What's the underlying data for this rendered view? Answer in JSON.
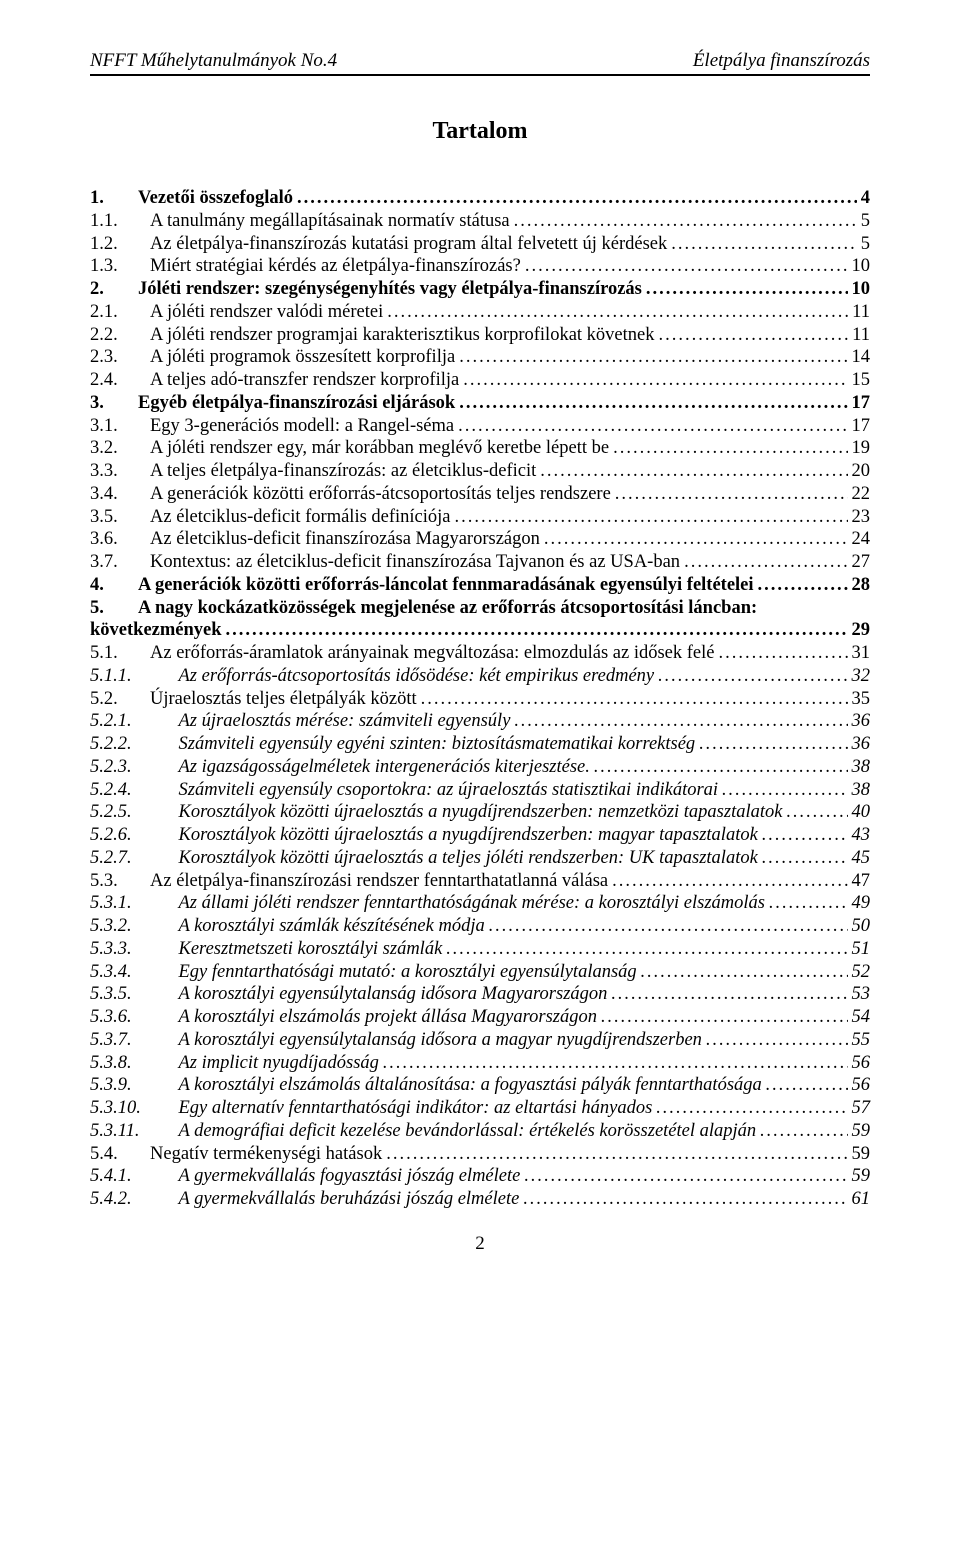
{
  "header": {
    "left": "NFFT Műhelytanulmányok No.4",
    "right": "Életpálya finanszírozás"
  },
  "title": "Tartalom",
  "toc": [
    {
      "num": "1.",
      "label": "Vezetői összefoglaló",
      "page": "4",
      "bold": true,
      "level": 1
    },
    {
      "num": "1.1.",
      "label": "A tanulmány megállapításainak normatív státusa",
      "page": "5",
      "level": 2
    },
    {
      "num": "1.2.",
      "label": "Az életpálya-finanszírozás kutatási program által felvetett új kérdések",
      "page": "5",
      "level": 2
    },
    {
      "num": "1.3.",
      "label": "Miért stratégiai kérdés az életpálya-finanszírozás?",
      "page": "10",
      "level": 2
    },
    {
      "num": "2.",
      "label": "Jóléti rendszer: szegénységenyhítés vagy életpálya-finanszírozás",
      "page": "10",
      "bold": true,
      "level": 1
    },
    {
      "num": "2.1.",
      "label": "A jóléti rendszer valódi méretei",
      "page": "11",
      "level": 2
    },
    {
      "num": "2.2.",
      "label": "A jóléti rendszer programjai karakterisztikus korprofilokat követnek",
      "page": "11",
      "level": 2
    },
    {
      "num": "2.3.",
      "label": "A jóléti programok összesített korprofilja",
      "page": "14",
      "level": 2
    },
    {
      "num": "2.4.",
      "label": "A teljes adó-transzfer rendszer korprofilja",
      "page": "15",
      "level": 2
    },
    {
      "num": "3.",
      "label": "Egyéb életpálya-finanszírozási eljárások",
      "page": "17",
      "bold": true,
      "level": 1
    },
    {
      "num": "3.1.",
      "label": "Egy 3-generációs modell: a Rangel-séma",
      "page": "17",
      "level": 2
    },
    {
      "num": "3.2.",
      "label": "A jóléti rendszer egy, már korábban meglévő keretbe lépett be",
      "page": "19",
      "level": 2
    },
    {
      "num": "3.3.",
      "label": "A teljes életpálya-finanszírozás: az életciklus-deficit",
      "page": "20",
      "level": 2
    },
    {
      "num": "3.4.",
      "label": "A generációk közötti erőforrás-átcsoportosítás teljes rendszere",
      "page": "22",
      "level": 2
    },
    {
      "num": "3.5.",
      "label": "Az életciklus-deficit formális definíciója",
      "page": "23",
      "level": 2
    },
    {
      "num": "3.6.",
      "label": "Az életciklus-deficit finanszírozása Magyarországon",
      "page": "24",
      "level": 2
    },
    {
      "num": "3.7.",
      "label": "Kontextus: az életciklus-deficit finanszírozása Tajvanon és az USA-ban",
      "page": "27",
      "level": 2
    },
    {
      "num": "4.",
      "label": "A generációk közötti erőforrás-láncolat fennmaradásának egyensúlyi feltételei",
      "page": "28",
      "bold": true,
      "level": 1
    }
  ],
  "wrapEntry": {
    "num": "5.",
    "line1": "A nagy kockázatközösségek megjelenése az erőforrás átcsoportosítási láncban:",
    "line2": "következmények",
    "page": "29"
  },
  "toc2": [
    {
      "num": "5.1.",
      "label": "Az erőforrás-áramlatok arányainak megváltozása: elmozdulás az idősek felé",
      "page": "31",
      "level": 2
    },
    {
      "num": "5.1.1.",
      "label": "Az erőforrás-átcsoportosítás idősödése: két empirikus eredmény",
      "page": "32",
      "italic": true,
      "level": 3
    },
    {
      "num": "5.2.",
      "label": "Újraelosztás teljes életpályák között",
      "page": "35",
      "level": 2
    },
    {
      "num": "5.2.1.",
      "label": "Az újraelosztás mérése: számviteli egyensúly",
      "page": "36",
      "italic": true,
      "level": 3
    },
    {
      "num": "5.2.2.",
      "label": "Számviteli egyensúly egyéni szinten: biztosításmatematikai korrektség",
      "page": "36",
      "italic": true,
      "level": 3
    },
    {
      "num": "5.2.3.",
      "label": "Az igazságosságelméletek intergenerációs kiterjesztése.",
      "page": "38",
      "italic": true,
      "level": 3
    },
    {
      "num": "5.2.4.",
      "label": "Számviteli egyensúly csoportokra: az újraelosztás statisztikai indikátorai",
      "page": "38",
      "italic": true,
      "level": 3
    },
    {
      "num": "5.2.5.",
      "label": "Korosztályok közötti újraelosztás a nyugdíjrendszerben: nemzetközi tapasztalatok",
      "page": "40",
      "italic": true,
      "level": 3
    },
    {
      "num": "5.2.6.",
      "label": "Korosztályok közötti újraelosztás a nyugdíjrendszerben: magyar tapasztalatok",
      "page": "43",
      "italic": true,
      "level": 3
    },
    {
      "num": "5.2.7.",
      "label": "Korosztályok közötti újraelosztás a teljes jóléti rendszerben: UK tapasztalatok",
      "page": "45",
      "italic": true,
      "level": 3
    },
    {
      "num": "5.3.",
      "label": "Az életpálya-finanszírozási rendszer fenntarthatatlanná válása",
      "page": "47",
      "level": 2
    },
    {
      "num": "5.3.1.",
      "label": "Az állami jóléti rendszer fenntarthatóságának mérése: a korosztályi elszámolás",
      "page": "49",
      "italic": true,
      "level": 3
    },
    {
      "num": "5.3.2.",
      "label": "A korosztályi számlák készítésének módja",
      "page": "50",
      "italic": true,
      "level": 3
    },
    {
      "num": "5.3.3.",
      "label": "Keresztmetszeti korosztályi számlák",
      "page": "51",
      "italic": true,
      "level": 3
    },
    {
      "num": "5.3.4.",
      "label": "Egy fenntarthatósági mutató: a korosztályi egyensúlytalanság",
      "page": "52",
      "italic": true,
      "level": 3
    },
    {
      "num": "5.3.5.",
      "label": "A korosztályi egyensúlytalanság idősora Magyarországon",
      "page": "53",
      "italic": true,
      "level": 3
    },
    {
      "num": "5.3.6.",
      "label": "A korosztályi elszámolás projekt állása Magyarországon",
      "page": "54",
      "italic": true,
      "level": 3
    },
    {
      "num": "5.3.7.",
      "label": "A korosztályi egyensúlytalanság idősora a magyar nyugdíjrendszerben",
      "page": "55",
      "italic": true,
      "level": 3
    },
    {
      "num": "5.3.8.",
      "label": "Az implicit nyugdíjadósság",
      "page": "56",
      "italic": true,
      "level": 3
    },
    {
      "num": "5.3.9.",
      "label": "A korosztályi elszámolás általánosítása: a fogyasztási pályák fenntarthatósága",
      "page": "56",
      "italic": true,
      "level": 3
    },
    {
      "num": "5.3.10.",
      "label": "Egy alternatív fenntarthatósági indikátor: az eltartási hányados",
      "page": "57",
      "italic": true,
      "level": 3
    },
    {
      "num": "5.3.11.",
      "label": "A demográfiai deficit kezelése bevándorlással: értékelés korösszetétel alapján",
      "page": "59",
      "italic": true,
      "level": 3
    },
    {
      "num": "5.4.",
      "label": "Negatív termékenységi hatások",
      "page": "59",
      "level": 2
    },
    {
      "num": "5.4.1.",
      "label": "A gyermekvállalás fogyasztási jószág elmélete",
      "page": "59",
      "italic": true,
      "level": 3
    },
    {
      "num": "5.4.2.",
      "label": "A gyermekvállalás beruházási jószág elmélete",
      "page": "61",
      "italic": true,
      "level": 3
    }
  ],
  "footer": "2"
}
